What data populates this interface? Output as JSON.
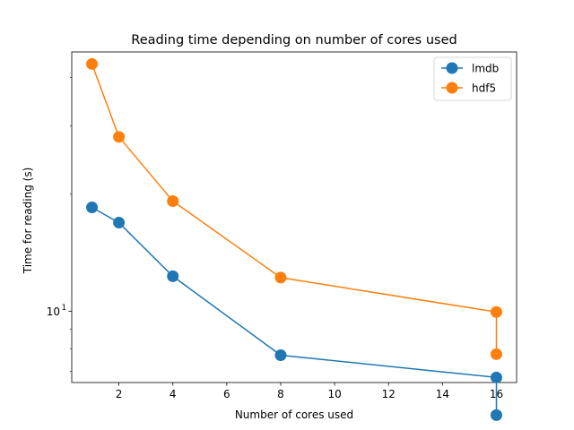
{
  "chart_data": {
    "type": "line",
    "title": "Reading time depending on number of cores used",
    "xlabel": "Number of cores used",
    "ylabel": "Time for reading (s)",
    "xlim": [
      0.25,
      16.75
    ],
    "ylim": [
      6.55,
      46.5
    ],
    "yscale": "log",
    "x_ticks": [
      2,
      4,
      6,
      8,
      10,
      12,
      14,
      16
    ],
    "x_tick_labels": [
      "2",
      "4",
      "6",
      "8",
      "10",
      "12",
      "14",
      "16"
    ],
    "y_ticks": [
      10
    ],
    "y_tick_labels": [
      "10^1"
    ],
    "y_tick_label_base": "10",
    "y_tick_label_exp": "1",
    "grid": false,
    "legend_position": "upper right",
    "series": [
      {
        "name": "lmdb",
        "color": "#1f77b4",
        "x": [
          1,
          2,
          4,
          8,
          16,
          16
        ],
        "y": [
          18.5,
          16.9,
          12.3,
          7.7,
          6.75,
          5.4
        ]
      },
      {
        "name": "hdf5",
        "color": "#ff7f0e",
        "x": [
          1,
          2,
          4,
          8,
          16,
          16
        ],
        "y": [
          43.3,
          28.1,
          19.2,
          12.2,
          9.95,
          7.75
        ]
      }
    ]
  }
}
